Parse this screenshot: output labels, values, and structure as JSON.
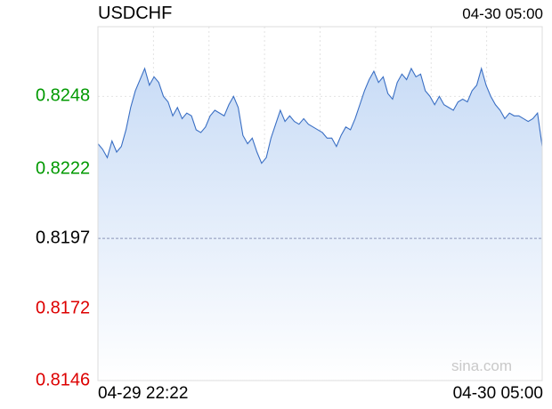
{
  "header": {
    "symbol": "USDCHF",
    "datetime": "04-30 05:00"
  },
  "watermark": "sina.com",
  "colors": {
    "up": "#009900",
    "down": "#dd0000",
    "neutral": "#000000",
    "line": "#3a6fc4"
  },
  "chart_data": {
    "type": "area",
    "title": "USDCHF",
    "x_start_label": "04-29 22:22",
    "x_end_label": "04-30 05:00",
    "ylim": [
      0.8146,
      0.8273
    ],
    "y_ticks": [
      {
        "label": "0.8248",
        "value": 0.8248,
        "status": "up"
      },
      {
        "label": "0.8222",
        "value": 0.8222,
        "status": "up"
      },
      {
        "label": "0.8197",
        "value": 0.8197,
        "status": "neutral"
      },
      {
        "label": "0.8172",
        "value": 0.8172,
        "status": "down"
      },
      {
        "label": "0.8146",
        "value": 0.8146,
        "status": "down"
      }
    ],
    "reference_level": 0.8197,
    "grid": true,
    "values": [
      0.8231,
      0.8229,
      0.8226,
      0.8232,
      0.8228,
      0.823,
      0.8236,
      0.8244,
      0.825,
      0.8254,
      0.8258,
      0.8252,
      0.8255,
      0.8253,
      0.8248,
      0.8246,
      0.8241,
      0.8244,
      0.824,
      0.8242,
      0.8241,
      0.8236,
      0.8235,
      0.8237,
      0.8241,
      0.8243,
      0.8242,
      0.8241,
      0.8245,
      0.8248,
      0.8244,
      0.8234,
      0.8231,
      0.8233,
      0.8228,
      0.8224,
      0.8226,
      0.8233,
      0.8238,
      0.8243,
      0.8239,
      0.8241,
      0.8239,
      0.8238,
      0.824,
      0.8238,
      0.8237,
      0.8236,
      0.8235,
      0.8233,
      0.8233,
      0.823,
      0.8234,
      0.8237,
      0.8236,
      0.824,
      0.8245,
      0.825,
      0.8254,
      0.8257,
      0.8253,
      0.8255,
      0.8249,
      0.8247,
      0.8253,
      0.8256,
      0.8254,
      0.8258,
      0.8255,
      0.8256,
      0.825,
      0.8248,
      0.8245,
      0.8248,
      0.8245,
      0.8244,
      0.8243,
      0.8246,
      0.8247,
      0.8246,
      0.825,
      0.8252,
      0.8258,
      0.8252,
      0.8248,
      0.8245,
      0.8243,
      0.824,
      0.8242,
      0.8241,
      0.8241,
      0.824,
      0.8239,
      0.824,
      0.8242,
      0.823
    ]
  }
}
